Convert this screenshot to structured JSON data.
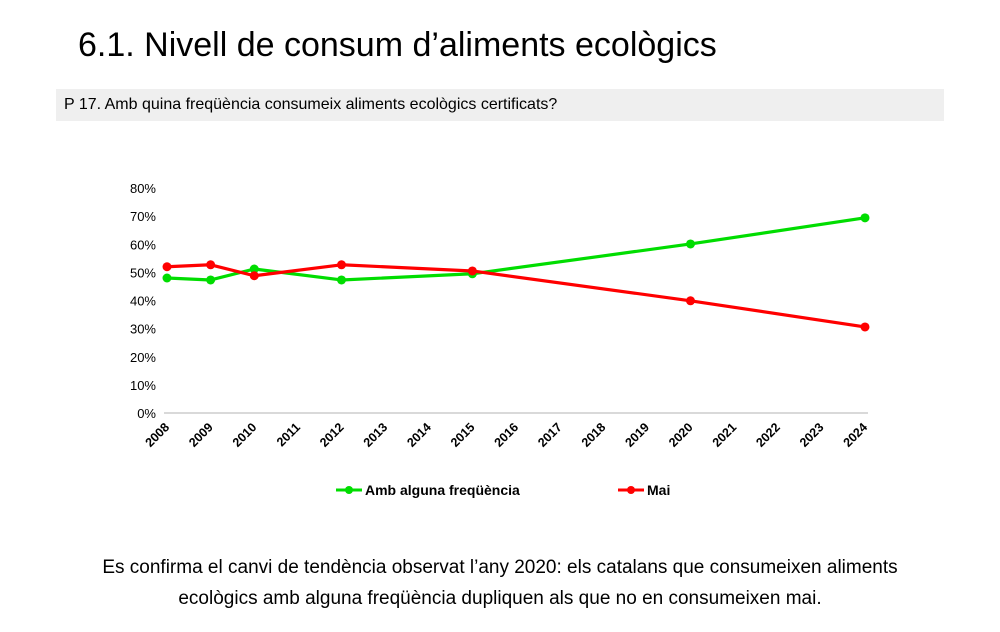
{
  "header": {
    "title": "6.1. Nivell de consum d’aliments ecològics",
    "question": "P 17. Amb quina freqüència consumeix aliments ecològics certificats?"
  },
  "conclusion": {
    "line1": "Es confirma el canvi de tendència observat l’any 2020: els catalans que consumeixen aliments",
    "line2": "ecològics amb alguna freqüència dupliquen als que no en consumeixen mai."
  },
  "chart_data": {
    "type": "line",
    "title": "",
    "xlabel": "",
    "ylabel": "",
    "categories": [
      "2008",
      "2009",
      "2010",
      "2011",
      "2012",
      "2013",
      "2014",
      "2015",
      "2016",
      "2017",
      "2018",
      "2019",
      "2020",
      "2021",
      "2022",
      "2023",
      "2024"
    ],
    "ylim": [
      0,
      80
    ],
    "yticks": [
      "0%",
      "10%",
      "20%",
      "30%",
      "40%",
      "50%",
      "60%",
      "70%",
      "80%"
    ],
    "grid": false,
    "legend_position": "bottom",
    "series": [
      {
        "name": "Amb alguna freqüència",
        "color": "#00dd00",
        "points": [
          {
            "x": "2008",
            "y": 48.0
          },
          {
            "x": "2009",
            "y": 47.3
          },
          {
            "x": "2010",
            "y": 51.2
          },
          {
            "x": "2012",
            "y": 47.3
          },
          {
            "x": "2015",
            "y": 49.5
          },
          {
            "x": "2020",
            "y": 60.1
          },
          {
            "x": "2024",
            "y": 69.4
          }
        ]
      },
      {
        "name": "Mai",
        "color": "#ff0000",
        "points": [
          {
            "x": "2008",
            "y": 52.0
          },
          {
            "x": "2009",
            "y": 52.7
          },
          {
            "x": "2010",
            "y": 48.8
          },
          {
            "x": "2012",
            "y": 52.7
          },
          {
            "x": "2015",
            "y": 50.5
          },
          {
            "x": "2020",
            "y": 39.9
          },
          {
            "x": "2024",
            "y": 30.6
          }
        ]
      }
    ]
  }
}
